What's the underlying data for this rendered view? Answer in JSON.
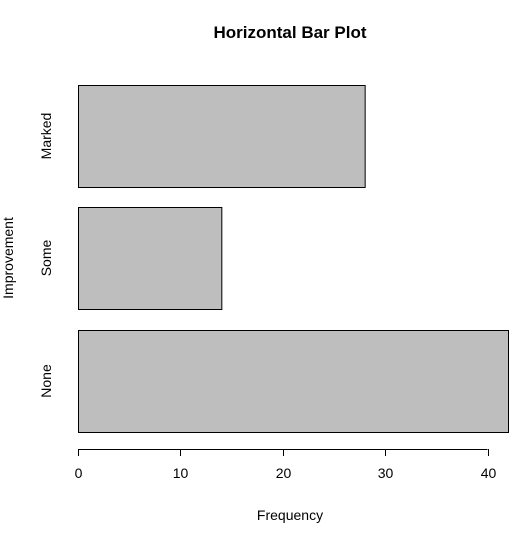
{
  "chart_data": {
    "type": "bar",
    "orientation": "horizontal",
    "title": "Horizontal Bar Plot",
    "xlabel": "Frequency",
    "ylabel": "Improvement",
    "categories": [
      "None",
      "Some",
      "Marked"
    ],
    "values": [
      42,
      14,
      28
    ],
    "xlim": [
      0,
      42
    ],
    "xticks": [
      0,
      10,
      20,
      30,
      40
    ],
    "grid": false,
    "bar_color": "#bebebe",
    "border_color": "#000000"
  }
}
